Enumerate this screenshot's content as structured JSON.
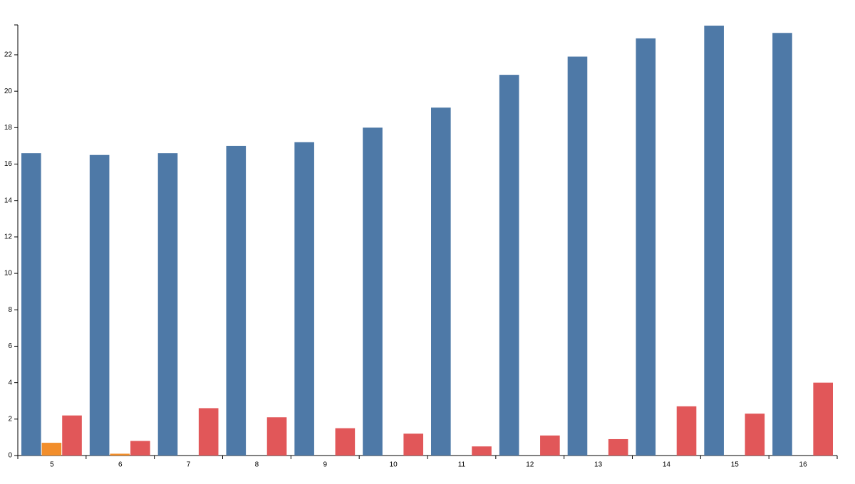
{
  "chart_data": {
    "type": "bar",
    "categories": [
      "5",
      "6",
      "7",
      "8",
      "9",
      "10",
      "11",
      "12",
      "13",
      "14",
      "15",
      "16"
    ],
    "series": [
      {
        "color": "#4e79a7",
        "values": [
          16.6,
          16.5,
          16.6,
          17.0,
          17.2,
          18.0,
          19.1,
          20.9,
          21.9,
          22.9,
          23.6,
          23.2
        ]
      },
      {
        "color": "#f28e2b",
        "values": [
          0.7,
          0.1,
          0,
          0,
          0,
          0,
          0,
          0,
          0,
          0,
          0,
          0
        ]
      },
      {
        "color": "#e15759",
        "values": [
          2.2,
          0.8,
          2.6,
          2.1,
          1.5,
          1.2,
          0.5,
          1.1,
          0.9,
          2.7,
          2.3,
          4.0
        ]
      }
    ],
    "ylim": [
      0,
      23.64
    ],
    "yticks": [
      0,
      2,
      4,
      6,
      8,
      10,
      12,
      14,
      16,
      18,
      20,
      22
    ]
  }
}
